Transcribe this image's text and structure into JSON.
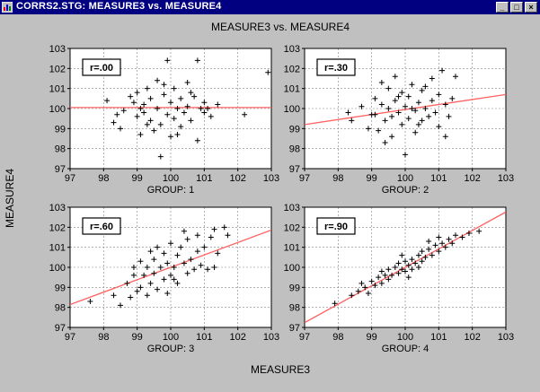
{
  "window": {
    "title": "CORRS2.STG: MEASURE3 vs. MEASURE4",
    "minimize_glyph": "_",
    "maximize_glyph": "□",
    "close_glyph": "×",
    "icon": "statistica-app-icon"
  },
  "colors": {
    "titlebar": "#000080",
    "background": "#c0c0c0",
    "points": "#000000",
    "fit_line": "#ff6060"
  },
  "chart_data": [
    {
      "type": "scatter",
      "title": "MEASURE3 vs. MEASURE4",
      "xlabel": "GROUP: 1",
      "ylabel": "MEASURE4",
      "annotation": "r=.00",
      "xlim": [
        97,
        103
      ],
      "ylim": [
        97,
        103
      ],
      "xticks": [
        97,
        98,
        99,
        100,
        101,
        102,
        103
      ],
      "yticks": [
        97,
        98,
        99,
        100,
        101,
        102,
        103
      ],
      "grid": true,
      "fit_line": {
        "intercept": 100.05,
        "slope": 0.0
      },
      "points": [
        [
          98.1,
          100.4
        ],
        [
          98.3,
          99.3
        ],
        [
          98.4,
          99.7
        ],
        [
          98.5,
          99.0
        ],
        [
          98.6,
          99.9
        ],
        [
          98.8,
          100.6
        ],
        [
          98.9,
          100.3
        ],
        [
          99.0,
          99.6
        ],
        [
          99.0,
          100.8
        ],
        [
          99.1,
          98.7
        ],
        [
          99.2,
          99.8
        ],
        [
          99.2,
          100.2
        ],
        [
          99.3,
          101.0
        ],
        [
          99.4,
          99.4
        ],
        [
          99.4,
          100.5
        ],
        [
          99.5,
          98.9
        ],
        [
          99.6,
          101.4
        ],
        [
          99.6,
          100.0
        ],
        [
          99.7,
          99.2
        ],
        [
          99.8,
          100.7
        ],
        [
          99.8,
          101.2
        ],
        [
          99.9,
          102.4
        ],
        [
          99.9,
          99.7
        ],
        [
          100.0,
          100.3
        ],
        [
          100.0,
          98.6
        ],
        [
          100.1,
          101.0
        ],
        [
          100.1,
          99.5
        ],
        [
          100.2,
          100.0
        ],
        [
          100.3,
          100.5
        ],
        [
          100.3,
          99.1
        ],
        [
          100.4,
          99.8
        ],
        [
          100.5,
          100.1
        ],
        [
          100.5,
          101.3
        ],
        [
          100.6,
          99.4
        ],
        [
          100.7,
          100.6
        ],
        [
          100.8,
          102.4
        ],
        [
          100.8,
          98.4
        ],
        [
          100.9,
          100.0
        ],
        [
          101.0,
          99.8
        ],
        [
          101.0,
          100.3
        ],
        [
          101.1,
          100.0
        ],
        [
          101.2,
          99.6
        ],
        [
          101.4,
          100.2
        ],
        [
          102.2,
          99.7
        ],
        [
          102.9,
          101.8
        ],
        [
          99.1,
          100.0
        ],
        [
          99.3,
          99.2
        ],
        [
          99.7,
          97.6
        ],
        [
          100.2,
          98.7
        ],
        [
          100.6,
          100.8
        ]
      ]
    },
    {
      "type": "scatter",
      "xlabel": "GROUP: 2",
      "annotation": "r=.30",
      "xlim": [
        97,
        103
      ],
      "ylim": [
        97,
        103
      ],
      "xticks": [
        97,
        98,
        99,
        100,
        101,
        102,
        103
      ],
      "yticks": [
        97,
        98,
        99,
        100,
        101,
        102,
        103
      ],
      "grid": true,
      "fit_line": {
        "intercept": 99.95,
        "slope": 0.25
      },
      "points": [
        [
          98.4,
          99.4
        ],
        [
          98.7,
          100.1
        ],
        [
          98.9,
          99.0
        ],
        [
          99.0,
          99.7
        ],
        [
          99.1,
          100.5
        ],
        [
          99.2,
          98.9
        ],
        [
          99.3,
          100.2
        ],
        [
          99.3,
          101.3
        ],
        [
          99.4,
          99.4
        ],
        [
          99.5,
          100.0
        ],
        [
          99.5,
          101.0
        ],
        [
          99.6,
          99.6
        ],
        [
          99.6,
          98.6
        ],
        [
          99.7,
          100.4
        ],
        [
          99.7,
          101.6
        ],
        [
          99.8,
          99.8
        ],
        [
          99.9,
          100.8
        ],
        [
          99.9,
          99.2
        ],
        [
          100.0,
          100.1
        ],
        [
          100.0,
          97.7
        ],
        [
          100.1,
          100.6
        ],
        [
          100.1,
          99.5
        ],
        [
          100.2,
          101.2
        ],
        [
          100.3,
          99.9
        ],
        [
          100.3,
          98.8
        ],
        [
          100.4,
          100.3
        ],
        [
          100.5,
          99.4
        ],
        [
          100.5,
          100.9
        ],
        [
          100.6,
          100.0
        ],
        [
          100.7,
          99.6
        ],
        [
          100.8,
          100.4
        ],
        [
          100.8,
          101.5
        ],
        [
          100.9,
          99.8
        ],
        [
          101.0,
          100.7
        ],
        [
          101.0,
          99.1
        ],
        [
          101.1,
          101.9
        ],
        [
          101.2,
          100.2
        ],
        [
          101.3,
          99.6
        ],
        [
          101.4,
          100.5
        ],
        [
          101.5,
          101.6
        ],
        [
          98.3,
          99.8
        ],
        [
          99.1,
          99.7
        ],
        [
          99.8,
          100.6
        ],
        [
          100.4,
          99.2
        ],
        [
          100.6,
          101.1
        ],
        [
          101.2,
          98.6
        ],
        [
          99.4,
          98.3
        ],
        [
          100.2,
          100.0
        ]
      ]
    },
    {
      "type": "scatter",
      "xlabel": "GROUP: 3",
      "annotation": "r=.60",
      "xlim": [
        97,
        103
      ],
      "ylim": [
        97,
        103
      ],
      "xticks": [
        97,
        98,
        99,
        100,
        101,
        102,
        103
      ],
      "yticks": [
        97,
        98,
        99,
        100,
        101,
        102,
        103
      ],
      "grid": true,
      "fit_line": {
        "intercept": 100.0,
        "slope": 0.62
      },
      "points": [
        [
          97.6,
          98.3
        ],
        [
          98.3,
          98.6
        ],
        [
          98.5,
          98.1
        ],
        [
          98.7,
          99.2
        ],
        [
          98.8,
          98.5
        ],
        [
          98.9,
          99.6
        ],
        [
          99.0,
          98.8
        ],
        [
          99.1,
          100.3
        ],
        [
          99.1,
          99.0
        ],
        [
          99.2,
          99.6
        ],
        [
          99.3,
          100.0
        ],
        [
          99.3,
          98.6
        ],
        [
          99.4,
          99.2
        ],
        [
          99.5,
          100.4
        ],
        [
          99.5,
          99.7
        ],
        [
          99.6,
          101.0
        ],
        [
          99.6,
          98.9
        ],
        [
          99.7,
          100.0
        ],
        [
          99.8,
          99.4
        ],
        [
          99.8,
          100.7
        ],
        [
          99.9,
          100.2
        ],
        [
          100.0,
          99.6
        ],
        [
          100.0,
          101.2
        ],
        [
          100.1,
          100.0
        ],
        [
          100.2,
          100.6
        ],
        [
          100.2,
          99.2
        ],
        [
          100.3,
          101.0
        ],
        [
          100.4,
          100.2
        ],
        [
          100.5,
          99.7
        ],
        [
          100.5,
          101.4
        ],
        [
          100.6,
          100.4
        ],
        [
          100.7,
          99.9
        ],
        [
          100.8,
          101.6
        ],
        [
          100.8,
          100.8
        ],
        [
          100.9,
          100.1
        ],
        [
          101.0,
          101.0
        ],
        [
          101.1,
          99.9
        ],
        [
          101.2,
          101.5
        ],
        [
          101.3,
          101.9
        ],
        [
          101.4,
          100.7
        ],
        [
          101.6,
          102.0
        ],
        [
          101.3,
          100.0
        ],
        [
          99.9,
          98.7
        ],
        [
          100.4,
          101.8
        ],
        [
          98.9,
          100.0
        ],
        [
          101.7,
          101.6
        ],
        [
          100.1,
          99.4
        ],
        [
          99.4,
          100.8
        ]
      ]
    },
    {
      "type": "scatter",
      "xlabel": "GROUP: 4",
      "annotation": "r=.90",
      "xlim": [
        97,
        103
      ],
      "ylim": [
        97,
        103
      ],
      "xticks": [
        97,
        98,
        99,
        100,
        101,
        102,
        103
      ],
      "yticks": [
        97,
        98,
        99,
        100,
        101,
        102,
        103
      ],
      "grid": true,
      "fit_line": {
        "intercept": 100.0,
        "slope": 0.92
      },
      "points": [
        [
          97.9,
          98.2
        ],
        [
          98.4,
          98.6
        ],
        [
          98.6,
          98.8
        ],
        [
          98.8,
          99.0
        ],
        [
          98.9,
          98.7
        ],
        [
          99.0,
          99.3
        ],
        [
          99.1,
          99.1
        ],
        [
          99.2,
          99.5
        ],
        [
          99.3,
          99.2
        ],
        [
          99.4,
          99.6
        ],
        [
          99.5,
          99.4
        ],
        [
          99.5,
          99.9
        ],
        [
          99.6,
          99.6
        ],
        [
          99.7,
          100.0
        ],
        [
          99.8,
          99.7
        ],
        [
          99.8,
          100.2
        ],
        [
          99.9,
          99.9
        ],
        [
          100.0,
          100.3
        ],
        [
          100.0,
          99.8
        ],
        [
          100.1,
          100.1
        ],
        [
          100.2,
          100.4
        ],
        [
          100.2,
          99.9
        ],
        [
          100.3,
          100.2
        ],
        [
          100.4,
          100.6
        ],
        [
          100.5,
          100.3
        ],
        [
          100.5,
          100.8
        ],
        [
          100.6,
          100.5
        ],
        [
          100.7,
          100.9
        ],
        [
          100.8,
          100.6
        ],
        [
          100.9,
          101.1
        ],
        [
          101.0,
          100.8
        ],
        [
          101.1,
          101.2
        ],
        [
          101.2,
          101.0
        ],
        [
          101.3,
          101.4
        ],
        [
          101.4,
          101.2
        ],
        [
          101.5,
          101.6
        ],
        [
          101.7,
          101.5
        ],
        [
          101.9,
          101.7
        ],
        [
          102.2,
          101.8
        ],
        [
          99.3,
          99.8
        ],
        [
          100.1,
          99.5
        ],
        [
          100.7,
          101.3
        ],
        [
          98.7,
          99.2
        ],
        [
          101.0,
          101.5
        ],
        [
          99.9,
          100.6
        ],
        [
          100.4,
          100.0
        ]
      ]
    }
  ],
  "figure": {
    "title": "MEASURE3 vs. MEASURE4",
    "xlabel": "MEASURE3",
    "ylabel": "MEASURE4"
  }
}
